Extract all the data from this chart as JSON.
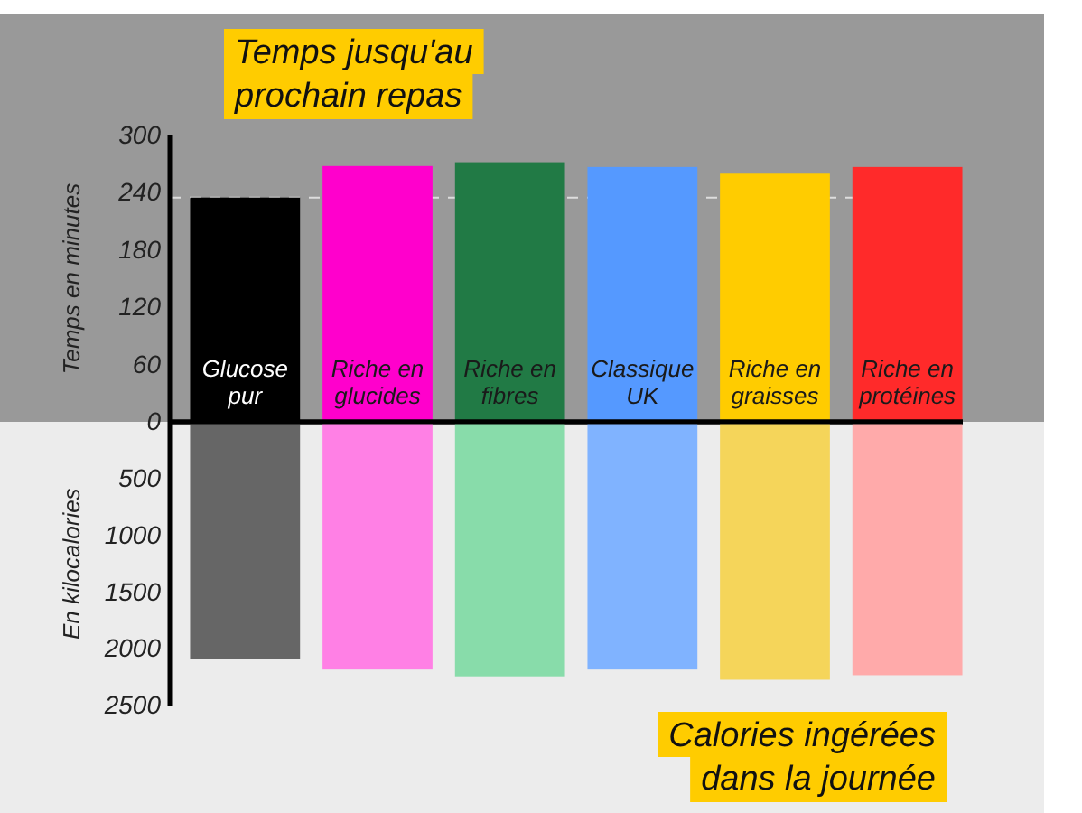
{
  "chart_data": [
    {
      "type": "bar",
      "title": "Temps jusqu'au prochain repas",
      "ylabel": "Temps en minutes",
      "categories": [
        "Glucose pur",
        "Riche en glucides",
        "Riche en fibres",
        "Classique UK",
        "Riche en graisses",
        "Riche en protéines"
      ],
      "values": [
        235,
        268,
        272,
        267,
        260,
        267
      ],
      "colors": [
        "#000000",
        "#ff00cc",
        "#217a45",
        "#5599ff",
        "#ffcc00",
        "#ff2a2a"
      ],
      "ylim": [
        0,
        300
      ],
      "yticks": [
        0,
        60,
        120,
        180,
        240,
        300
      ],
      "ref_lines": [
        {
          "axis": "y",
          "value": 235,
          "color": "#dddddd",
          "line_style": "dashed"
        }
      ]
    },
    {
      "type": "bar",
      "title": "Calories ingérées dans la journée",
      "ylabel": "En kilocalories",
      "categories": [
        null,
        null,
        null,
        null,
        null,
        null
      ],
      "values": [
        2090,
        2180,
        2240,
        2180,
        2270,
        2230
      ],
      "colors": [
        "#666666",
        "#ff80e5",
        "#88dcaa",
        "#80b3ff",
        "#f5d55a",
        "#ffaaaa"
      ],
      "ylim": [
        2500,
        0
      ],
      "yticks": [
        500,
        1000,
        1500,
        2000,
        2500
      ],
      "tick_labels": "y"
    }
  ]
}
